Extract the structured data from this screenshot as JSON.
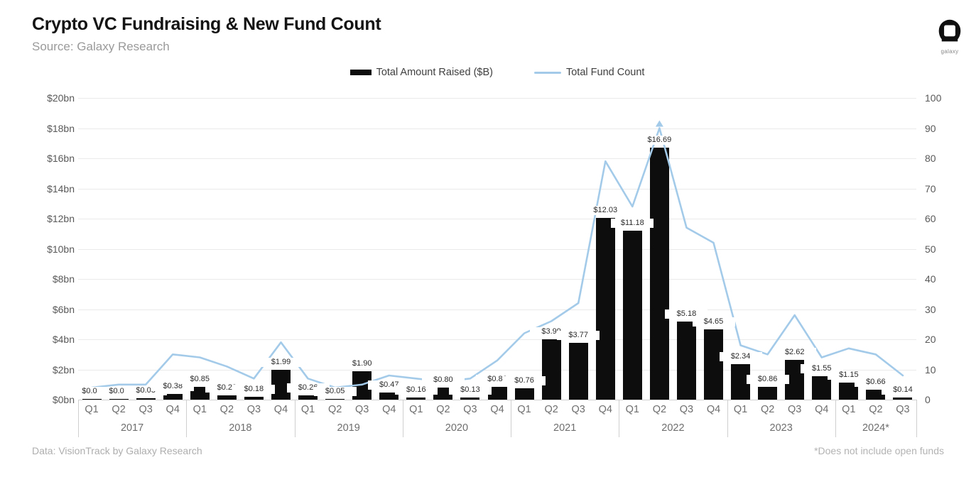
{
  "header": {
    "title": "Crypto VC Fundraising & New Fund Count",
    "subtitle": "Source: Galaxy Research",
    "logo_text": "galaxy"
  },
  "legend": {
    "items": [
      {
        "label": "Total Amount Raised ($B)",
        "type": "bar",
        "color": "#0d0d0d"
      },
      {
        "label": "Total Fund Count",
        "type": "line",
        "color": "#a3cbe9"
      }
    ]
  },
  "footer": {
    "left": "Data: VisionTrack by Galaxy Research",
    "right": "*Does not include open funds"
  },
  "chart_data": {
    "type": "bar+line",
    "title": "Crypto VC Fundraising & New Fund Count",
    "grid": true,
    "legend_position": "top-center",
    "categories": [
      "Q1",
      "Q2",
      "Q3",
      "Q4",
      "Q1",
      "Q2",
      "Q3",
      "Q4",
      "Q1",
      "Q2",
      "Q3",
      "Q4",
      "Q1",
      "Q2",
      "Q3",
      "Q4",
      "Q1",
      "Q2",
      "Q3",
      "Q4",
      "Q1",
      "Q2",
      "Q3",
      "Q4",
      "Q1",
      "Q2",
      "Q3",
      "Q4",
      "Q1",
      "Q2",
      "Q3"
    ],
    "year_groups": [
      {
        "label": "2017",
        "quarters": 4
      },
      {
        "label": "2018",
        "quarters": 4
      },
      {
        "label": "2019",
        "quarters": 4
      },
      {
        "label": "2020",
        "quarters": 4
      },
      {
        "label": "2021",
        "quarters": 4
      },
      {
        "label": "2022",
        "quarters": 4
      },
      {
        "label": "2023",
        "quarters": 4
      },
      {
        "label": "2024*",
        "quarters": 3
      }
    ],
    "series": [
      {
        "name": "Total Amount Raised ($B)",
        "type": "bar",
        "axis": "left",
        "color": "#0d0d0d",
        "values": [
          0.05,
          0.07,
          0.08,
          0.38,
          0.85,
          0.29,
          0.18,
          1.99,
          0.26,
          0.05,
          1.9,
          0.47,
          0.16,
          0.8,
          0.13,
          0.86,
          0.76,
          3.99,
          3.77,
          12.03,
          11.18,
          16.69,
          5.18,
          4.65,
          2.34,
          0.86,
          2.62,
          1.55,
          1.15,
          0.66,
          0.14
        ],
        "labels": [
          "$0.05",
          "$0.07",
          "$0.08",
          "$0.38",
          "$0.85",
          "$0.29",
          "$0.18",
          "$1.99",
          "$0.26",
          "$0.05",
          "$1.90",
          "$0.47",
          "$0.16",
          "$0.80",
          "$0.13",
          "$0.86",
          "$0.76",
          "$3.99",
          "$3.77",
          "$12.03",
          "$11.18",
          "$16.69",
          "$5.18",
          "$4.65",
          "$2.34",
          "$0.86",
          "$2.62",
          "$1.55",
          "$1.15",
          "$0.66",
          "$0.14"
        ]
      },
      {
        "name": "Total Fund Count",
        "type": "line",
        "axis": "right",
        "color": "#a3cbe9",
        "values": [
          4,
          5,
          5,
          15,
          14,
          11,
          7,
          19,
          7,
          4,
          5,
          8,
          7,
          6,
          7,
          13,
          22,
          26,
          32,
          79,
          64,
          90,
          57,
          52,
          18,
          15,
          28,
          14,
          17,
          15,
          8
        ],
        "peak_marker_index": 21
      }
    ],
    "left_axis": {
      "label": "",
      "min": 0,
      "max": 20,
      "ticks": [
        "$0bn",
        "$2bn",
        "$4bn",
        "$6bn",
        "$8bn",
        "$10bn",
        "$12bn",
        "$14bn",
        "$16bn",
        "$18bn",
        "$20bn"
      ]
    },
    "right_axis": {
      "label": "",
      "min": 0,
      "max": 100,
      "ticks": [
        "0",
        "10",
        "20",
        "30",
        "40",
        "50",
        "60",
        "70",
        "80",
        "90",
        "100"
      ]
    }
  }
}
